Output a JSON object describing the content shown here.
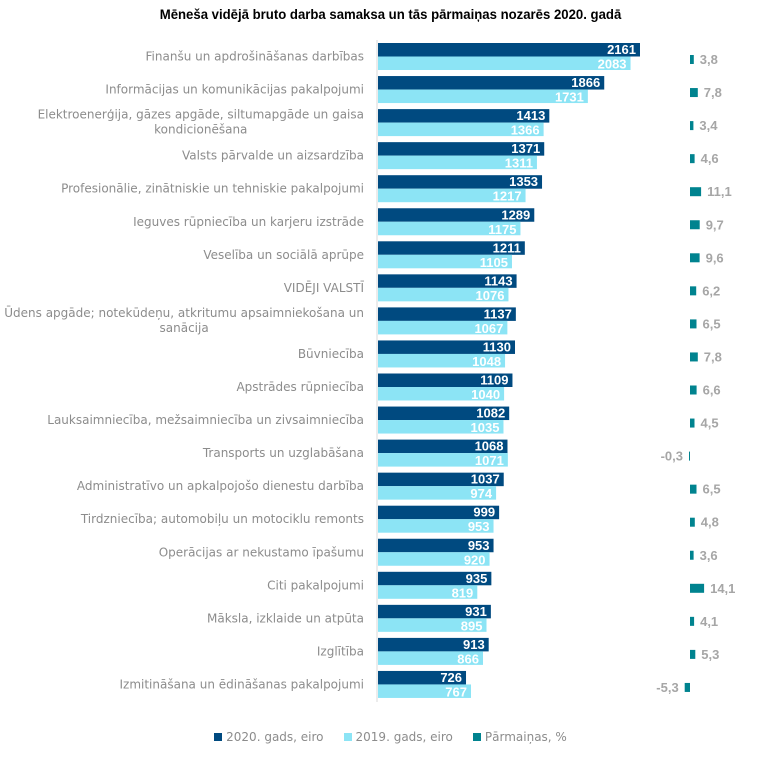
{
  "chart_data": {
    "type": "bar",
    "orientation": "horizontal",
    "title": "Mēneša vidējā bruto darba samaksa un tās pārmaiņas nozarēs 2020. gadā",
    "xlabel": "",
    "ylabel": "",
    "grid": false,
    "legend_position": "bottom",
    "categories": [
      "Finanšu un apdrošināšanas darbības",
      "Informācijas un komunikācijas pakalpojumi",
      "Elektroenerģija, gāzes apgāde, siltumapgāde un gaisa kondicionēšana",
      "Valsts pārvalde un aizsardzība",
      "Profesionālie, zinātniskie un tehniskie pakalpojumi",
      "Ieguves rūpniecība un karjeru izstrāde",
      "Veselība un sociālā aprūpe",
      "VIDĒJI VALSTĪ",
      "Ūdens apgāde; notekūdeņu, atkritumu apsaimniekošana un sanācija",
      "Būvniecība",
      "Apstrādes rūpniecība",
      "Lauksaimniecība, mežsaimniecība un zivsaimniecība",
      "Transports un uzglabāšana",
      "Administratīvo un apkalpojošo dienestu darbība",
      "Tirdzniecība; automobiļu un motociklu remonts",
      "Operācijas ar nekustamo īpašumu",
      "Citi pakalpojumi",
      "Māksla, izklaide un atpūta",
      "Izglītība",
      "Izmitināšana un ēdināšanas pakalpojumi"
    ],
    "category_lines": [
      [
        "Finanšu un apdrošināšanas darbības"
      ],
      [
        "Informācijas un komunikācijas pakalpojumi"
      ],
      [
        "Elektroenerģija, gāzes apgāde, siltumapgāde un gaisa",
        "kondicionēšana"
      ],
      [
        "Valsts pārvalde un aizsardzība"
      ],
      [
        "Profesionālie, zinātniskie un tehniskie pakalpojumi"
      ],
      [
        "Ieguves rūpniecība un karjeru izstrāde"
      ],
      [
        "Veselība un sociālā aprūpe"
      ],
      [
        "VIDĒJI VALSTĪ"
      ],
      [
        "Ūdens apgāde; notekūdeņu, atkritumu apsaimniekošana un",
        "sanācija"
      ],
      [
        "Būvniecība"
      ],
      [
        "Apstrādes rūpniecība"
      ],
      [
        "Lauksaimniecība, mežsaimniecība un zivsaimniecība"
      ],
      [
        "Transports un uzglabāšana"
      ],
      [
        "Administratīvo un apkalpojošo dienestu darbība"
      ],
      [
        "Tirdzniecība; automobiļu un motociklu remonts"
      ],
      [
        "Operācijas ar nekustamo īpašumu"
      ],
      [
        "Citi pakalpojumi"
      ],
      [
        "Māksla, izklaide un atpūta"
      ],
      [
        "Izglītība"
      ],
      [
        "Izmitināšana un ēdināšanas pakalpojumi"
      ]
    ],
    "series": [
      {
        "name": "2020. gads, eiro",
        "color": "#004a80",
        "values": [
          2161,
          1866,
          1413,
          1371,
          1353,
          1289,
          1211,
          1143,
          1137,
          1130,
          1109,
          1082,
          1068,
          1037,
          999,
          953,
          935,
          931,
          913,
          726
        ]
      },
      {
        "name": "2019. gads, eiro",
        "color": "#8ce4f5",
        "values": [
          2083,
          1731,
          1366,
          1311,
          1217,
          1175,
          1105,
          1076,
          1067,
          1048,
          1040,
          1035,
          1071,
          974,
          953,
          920,
          819,
          895,
          866,
          767
        ]
      },
      {
        "name": "Pārmaiņas, %",
        "color": "#00838f",
        "values": [
          3.8,
          7.8,
          3.4,
          4.6,
          11.1,
          9.7,
          9.6,
          6.2,
          6.5,
          7.8,
          6.6,
          4.5,
          -0.3,
          6.5,
          4.8,
          3.6,
          14.1,
          4.1,
          5.3,
          -5.3
        ],
        "labels": [
          "3,8",
          "7,8",
          "3,4",
          "4,6",
          "11,1",
          "9,7",
          "9,6",
          "6,2",
          "6,5",
          "7,8",
          "6,6",
          "4,5",
          "-0,3",
          "6,5",
          "4,8",
          "3,6",
          "14,1",
          "4,1",
          "5,3",
          "-5,3"
        ]
      }
    ],
    "xlim_eiro": [
      0,
      2161
    ],
    "xlim_pct": [
      -5.3,
      14.1
    ]
  }
}
